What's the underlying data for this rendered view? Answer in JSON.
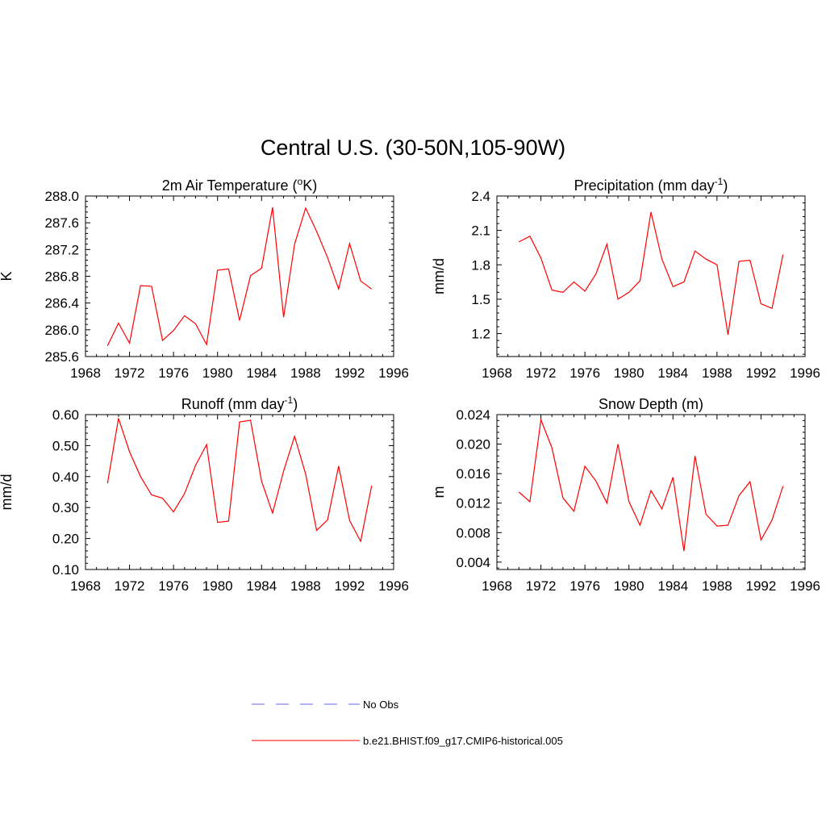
{
  "figure": {
    "title": "Central U.S. (30-50N,105-90W)"
  },
  "legend": {
    "entries": [
      {
        "label": "No Obs",
        "style": "dashed",
        "color": "#9999ee"
      },
      {
        "label": "b.e21.BHIST.f09_g17.CMIP6-historical.005",
        "style": "solid",
        "color": "#ff0000"
      }
    ]
  },
  "chart_data": [
    {
      "type": "line",
      "title": "2m Air Temperature (",
      "title_sup": "o",
      "title_end": "K)",
      "ylabel": "K",
      "xlabel": "",
      "xlim": [
        1968,
        1996
      ],
      "ylim": [
        285.6,
        288.0
      ],
      "xticks": [
        1968,
        1972,
        1976,
        1980,
        1984,
        1988,
        1992,
        1996
      ],
      "yticks": [
        285.6,
        286.0,
        286.4,
        286.8,
        287.2,
        287.6,
        288.0
      ],
      "ytick_labels": [
        "285.6",
        "286.0",
        "286.4",
        "286.8",
        "287.2",
        "287.6",
        "288.0"
      ],
      "color": "#ff0000",
      "x": [
        1970,
        1971,
        1972,
        1973,
        1974,
        1975,
        1976,
        1977,
        1978,
        1979,
        1980,
        1981,
        1982,
        1983,
        1984,
        1985,
        1986,
        1987,
        1988,
        1989,
        1990,
        1991,
        1992,
        1993,
        1994
      ],
      "y": [
        285.76,
        286.1,
        285.8,
        286.66,
        286.65,
        285.84,
        285.99,
        286.21,
        286.09,
        285.78,
        286.89,
        286.91,
        286.14,
        286.81,
        286.92,
        287.83,
        286.19,
        287.28,
        287.82,
        287.47,
        287.08,
        286.61,
        287.29,
        286.73,
        286.61
      ]
    },
    {
      "type": "line",
      "title": "Precipitation (mm day",
      "title_sup": "-1",
      "title_end": ")",
      "ylabel": "mm/d",
      "xlabel": "",
      "xlim": [
        1968,
        1996
      ],
      "ylim": [
        1.0,
        2.4
      ],
      "xticks": [
        1968,
        1972,
        1976,
        1980,
        1984,
        1988,
        1992,
        1996
      ],
      "yticks": [
        1.2,
        1.5,
        1.8,
        2.1,
        2.4
      ],
      "ytick_labels": [
        "1.2",
        "1.5",
        "1.8",
        "2.1",
        "2.4"
      ],
      "color": "#ff0000",
      "x": [
        1970,
        1971,
        1972,
        1973,
        1974,
        1975,
        1976,
        1977,
        1978,
        1979,
        1980,
        1981,
        1982,
        1983,
        1984,
        1985,
        1986,
        1987,
        1988,
        1989,
        1990,
        1991,
        1992,
        1993,
        1994
      ],
      "y": [
        2.0,
        2.05,
        1.86,
        1.58,
        1.56,
        1.65,
        1.57,
        1.72,
        1.98,
        1.5,
        1.56,
        1.66,
        2.26,
        1.85,
        1.61,
        1.65,
        1.92,
        1.85,
        1.8,
        1.19,
        1.83,
        1.84,
        1.46,
        1.42,
        1.89
      ]
    },
    {
      "type": "line",
      "title": "Runoff (mm day",
      "title_sup": "-1",
      "title_end": ")",
      "ylabel": "mm/d",
      "xlabel": "",
      "xlim": [
        1968,
        1996
      ],
      "ylim": [
        0.1,
        0.6
      ],
      "xticks": [
        1968,
        1972,
        1976,
        1980,
        1984,
        1988,
        1992,
        1996
      ],
      "yticks": [
        0.1,
        0.2,
        0.3,
        0.4,
        0.5,
        0.6
      ],
      "ytick_labels": [
        "0.10",
        "0.20",
        "0.30",
        "0.40",
        "0.50",
        "0.60"
      ],
      "color": "#ff0000",
      "x": [
        1970,
        1971,
        1972,
        1973,
        1974,
        1975,
        1976,
        1977,
        1978,
        1979,
        1980,
        1981,
        1982,
        1983,
        1984,
        1985,
        1986,
        1987,
        1988,
        1989,
        1990,
        1991,
        1992,
        1993,
        1994
      ],
      "y": [
        0.378,
        0.588,
        0.48,
        0.4,
        0.341,
        0.33,
        0.286,
        0.345,
        0.436,
        0.503,
        0.252,
        0.256,
        0.576,
        0.582,
        0.385,
        0.282,
        0.418,
        0.53,
        0.408,
        0.226,
        0.26,
        0.434,
        0.258,
        0.191,
        0.37
      ]
    },
    {
      "type": "line",
      "title": "Snow Depth (m)",
      "title_sup": "",
      "title_end": "",
      "ylabel": "m",
      "xlabel": "",
      "xlim": [
        1968,
        1996
      ],
      "ylim": [
        0.003,
        0.024
      ],
      "xticks": [
        1968,
        1972,
        1976,
        1980,
        1984,
        1988,
        1992,
        1996
      ],
      "yticks": [
        0.004,
        0.008,
        0.012,
        0.016,
        0.02,
        0.024
      ],
      "ytick_labels": [
        "0.004",
        "0.008",
        "0.012",
        "0.016",
        "0.020",
        "0.024"
      ],
      "color": "#ff0000",
      "x": [
        1970,
        1971,
        1972,
        1973,
        1974,
        1975,
        1976,
        1977,
        1978,
        1979,
        1980,
        1981,
        1982,
        1983,
        1984,
        1985,
        1986,
        1987,
        1988,
        1989,
        1990,
        1991,
        1992,
        1993,
        1994
      ],
      "y": [
        0.0135,
        0.0122,
        0.0233,
        0.0195,
        0.0127,
        0.0109,
        0.017,
        0.015,
        0.012,
        0.02,
        0.0122,
        0.009,
        0.0137,
        0.0112,
        0.0155,
        0.0055,
        0.0184,
        0.0105,
        0.0089,
        0.009,
        0.013,
        0.0149,
        0.007,
        0.0097,
        0.0143
      ]
    }
  ]
}
